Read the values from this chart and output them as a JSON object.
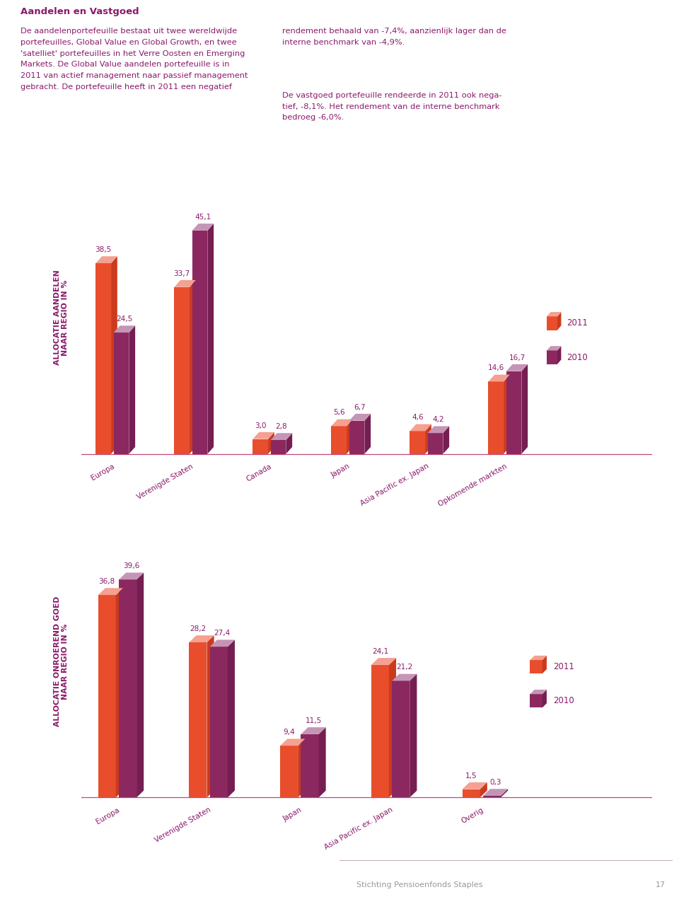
{
  "text_color": "#8B1A6B",
  "bar_2011_front": "#E84E2C",
  "bar_2011_top": "#F5A090",
  "bar_2011_side": "#CC3A1E",
  "bar_2010_front": "#8B2860",
  "bar_2010_top": "#C595B5",
  "bar_2010_side": "#751E52",
  "axis_color": "#C04878",
  "background": "#FFFFFF",
  "footer_line": "#C8A8B8",
  "footer_text": "#999999",
  "chart1": {
    "ylabel1": "ALLOCATIE AANDELEN",
    "ylabel2": "NAAR REGIO IN %",
    "categories": [
      "Europa",
      "Verenigde Staten",
      "Canada",
      "Japan",
      "Asia Pacific ex. Japan",
      "Opkomende markten"
    ],
    "values_2011": [
      38.5,
      33.7,
      3.0,
      5.6,
      4.6,
      14.6
    ],
    "values_2010": [
      24.5,
      45.1,
      2.8,
      6.7,
      4.2,
      16.7
    ]
  },
  "chart2": {
    "ylabel1": "ALLOCATIE ONROEREND GOED",
    "ylabel2": "NAAR REGIO IN %",
    "categories": [
      "Europa",
      "Verenigde Staten",
      "Japan",
      "Asia Pacific ex. Japan",
      "Overig"
    ],
    "values_2011": [
      36.8,
      28.2,
      9.4,
      24.1,
      1.5
    ],
    "values_2010": [
      39.6,
      27.4,
      11.5,
      21.2,
      0.3
    ]
  },
  "title": "Aandelen en Vastgoed",
  "col1_text": "De aandelenportefeuille bestaat uit twee wereldwijde\nportefeuilles, Global Value en Global Growth, en twee\n'satelliet' portefeuilles in het Verre Oosten en Emerging\nMarkets. De Global Value aandelen portefeuille is in\n2011 van actief management naar passief management\ngebracht. De portefeuille heeft in 2011 een negatief",
  "col2a_text": "rendement behaald van -7,4%, aanzienlijk lager dan de\ninterne benchmark van -4,9%.",
  "col2b_text": "De vastgoed portefeuille rendeerde in 2011 ook nega-\ntief, -8,1%. Het rendement van de interne benchmark\nbedroeg -6,0%.",
  "footer_org": "Stichting Pensioenfonds Staples",
  "footer_page": "17"
}
